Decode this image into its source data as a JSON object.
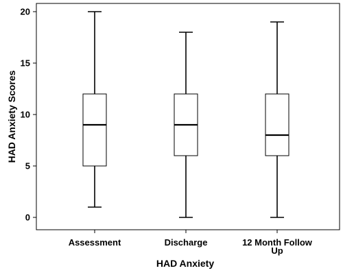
{
  "chart_data": {
    "type": "boxplot",
    "xlabel": "HAD Anxiety",
    "ylabel": "HAD Anxiety Scores",
    "ylim": [
      -1.2,
      20.8
    ],
    "yticks": [
      0,
      5,
      10,
      15,
      20
    ],
    "grid": false,
    "categories": [
      [
        "Assessment"
      ],
      [
        "Discharge"
      ],
      [
        "12 Month Follow",
        "Up"
      ]
    ],
    "boxes": [
      {
        "min": 1,
        "q1": 5,
        "median": 9,
        "q3": 12,
        "max": 20
      },
      {
        "min": 0,
        "q1": 6,
        "median": 9,
        "q3": 12,
        "max": 18
      },
      {
        "min": 0,
        "q1": 6,
        "median": 8,
        "q3": 12,
        "max": 19
      }
    ],
    "colors": {
      "box_fill": "#ffffff",
      "stroke": "#000000",
      "plot_border": "#000000"
    }
  }
}
